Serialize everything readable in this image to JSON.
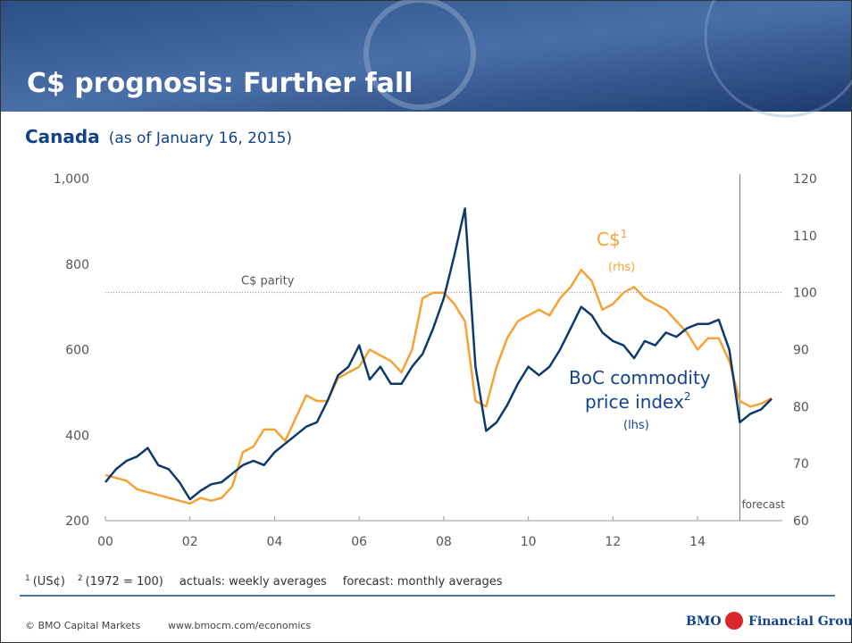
{
  "header": {
    "title": "C$ prognosis: Further fall"
  },
  "chart_data": {
    "type": "line",
    "subtitle": "Canada",
    "subtitle_note": "(as of January 16, 2015)",
    "x": [
      2000,
      2000.25,
      2000.5,
      2000.75,
      2001,
      2001.25,
      2001.5,
      2001.75,
      2002,
      2002.25,
      2002.5,
      2002.75,
      2003,
      2003.25,
      2003.5,
      2003.75,
      2004,
      2004.25,
      2004.5,
      2004.75,
      2005,
      2005.25,
      2005.5,
      2005.75,
      2006,
      2006.25,
      2006.5,
      2006.75,
      2007,
      2007.25,
      2007.5,
      2007.75,
      2008,
      2008.25,
      2008.5,
      2008.75,
      2009,
      2009.25,
      2009.5,
      2009.75,
      2010,
      2010.25,
      2010.5,
      2010.75,
      2011,
      2011.25,
      2011.5,
      2011.75,
      2012,
      2012.25,
      2012.5,
      2012.75,
      2013,
      2013.25,
      2013.5,
      2013.75,
      2014,
      2014.25,
      2014.5,
      2014.75,
      2015,
      2015.25,
      2015.5,
      2015.75
    ],
    "xlim": [
      2000,
      2016
    ],
    "xticks": [
      {
        "value": 2000,
        "label": "00"
      },
      {
        "value": 2002,
        "label": "02"
      },
      {
        "value": 2004,
        "label": "04"
      },
      {
        "value": 2006,
        "label": "06"
      },
      {
        "value": 2008,
        "label": "08"
      },
      {
        "value": 2010,
        "label": "10"
      },
      {
        "value": 2012,
        "label": "12"
      },
      {
        "value": 2014,
        "label": "14"
      }
    ],
    "ylim": [
      200,
      1000
    ],
    "yticks": [
      200,
      400,
      600,
      800,
      {
        "value": 1000,
        "label": "1,000"
      }
    ],
    "y2lim": [
      60,
      120
    ],
    "y2ticks": [
      60,
      70,
      80,
      90,
      100,
      110,
      120
    ],
    "series": [
      {
        "name": "BoC commodity price index",
        "sup": "2",
        "axis_note": "(lhs)",
        "color": "#0d3a6b",
        "values": [
          290,
          320,
          340,
          350,
          370,
          330,
          320,
          290,
          250,
          270,
          285,
          290,
          310,
          330,
          340,
          330,
          360,
          380,
          400,
          420,
          430,
          480,
          540,
          560,
          610,
          530,
          560,
          520,
          520,
          560,
          590,
          650,
          720,
          820,
          930,
          560,
          410,
          430,
          470,
          520,
          560,
          540,
          560,
          600,
          650,
          700,
          680,
          640,
          620,
          610,
          580,
          620,
          610,
          640,
          630,
          650,
          660,
          660,
          670,
          600,
          430,
          450,
          460,
          485
        ]
      },
      {
        "name": "C$",
        "sup": "1",
        "axis_note": "(rhs)",
        "axis": "y2",
        "color": "#f4a236",
        "values": [
          68,
          67.5,
          67,
          65.5,
          65,
          64.5,
          64,
          63.5,
          63,
          64,
          63.5,
          64,
          66,
          72,
          73,
          76,
          76,
          74,
          78,
          82,
          81,
          81,
          85,
          86,
          87,
          90,
          89,
          88,
          86,
          90,
          99,
          100,
          100,
          98,
          95,
          81,
          80,
          87,
          92,
          95,
          96,
          97,
          96,
          99,
          101,
          104,
          102,
          97,
          98,
          100,
          101,
          99,
          98,
          97,
          95,
          93,
          90,
          92,
          92,
          88,
          81,
          80,
          80.5,
          81.5
        ]
      }
    ],
    "reference_line": {
      "value": 100,
      "axis": "y2",
      "label": "C$ parity"
    },
    "forecast_line": {
      "x": 2015,
      "label": "forecast"
    },
    "footnotes": [
      "(US¢)",
      "(1972 = 100)",
      "actuals: weekly averages",
      "forecast: monthly averages"
    ],
    "footnote_marks": [
      "1",
      "2"
    ]
  },
  "footer": {
    "copyright": "© BMO Capital Markets",
    "url": "www.bmocm.com/economics",
    "logo_bmo": "BMO",
    "logo_group": "Financial Group"
  }
}
